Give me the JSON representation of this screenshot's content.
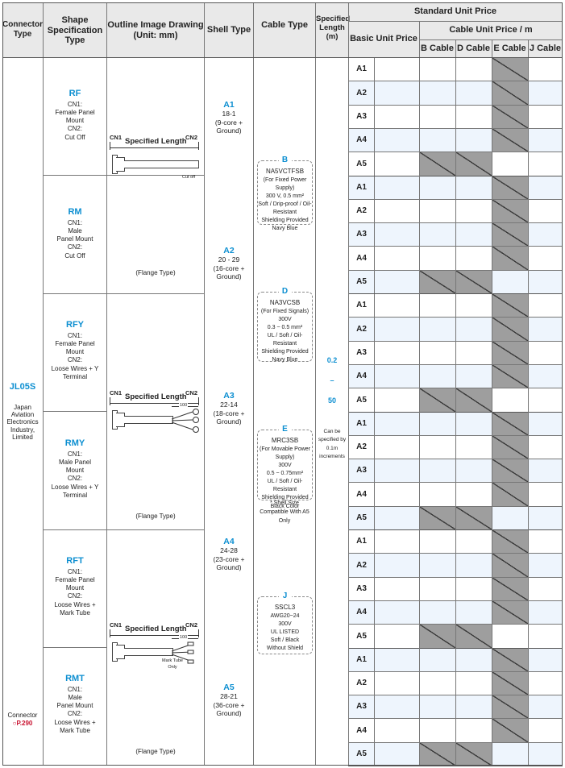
{
  "headers": {
    "connector_type": "Connector Type",
    "shape_spec": "Shape Specification Type",
    "outline": "Outline Image Drawing (Unit: mm)",
    "shell_type": "Shell Type",
    "cable_type": "Cable Type",
    "spec_length": "Specified Length (m)",
    "standard_unit_price": "Standard Unit Price",
    "basic_unit_price": "Basic Unit Price",
    "cable_unit_price": "Cable Unit Price / m",
    "cable_cols": [
      "B Cable",
      "D Cable",
      "E Cable",
      "J Cable"
    ]
  },
  "connector": {
    "name": "JL05S",
    "maker": "Japan Aviation Electronics Industry, Limited",
    "ref_label": "Connector",
    "ref_page": "P.290"
  },
  "shapes": [
    {
      "code": "RF",
      "desc": "CN1:\nFemale Panel\nMount\nCN2:\nCut Off"
    },
    {
      "code": "RM",
      "desc": "CN1:\nMale\nPanel Mount\nCN2:\nCut Off"
    },
    {
      "code": "RFY",
      "desc": "CN1:\nFemale Panel\nMount\nCN2:\nLoose Wires + Y\nTerminal"
    },
    {
      "code": "RMY",
      "desc": "CN1:\nMale Panel\nMount\nCN2:\nLoose Wires + Y\nTerminal"
    },
    {
      "code": "RFT",
      "desc": "CN1:\nFemale Panel\nMount\nCN2:\nLoose Wires +\nMark Tube"
    },
    {
      "code": "RMT",
      "desc": "CN1:\nMale\nPanel Mount\nCN2:\nLoose Wires +\nMark Tube"
    }
  ],
  "drawings": [
    {
      "cn1": "CN1",
      "cn2": "CN2",
      "spec": "Specified Length",
      "note": "Cut off",
      "flange": "(Flange Type)",
      "dim": ""
    },
    {
      "cn1": "CN1",
      "cn2": "CN2",
      "spec": "Specified Length",
      "note": "",
      "flange": "(Flange Type)",
      "dim": "100"
    },
    {
      "cn1": "CN1",
      "cn2": "CN2",
      "spec": "Specified Length",
      "note": "Mark Tube\nOnly",
      "flange": "(Flange Type)",
      "dim": "100"
    }
  ],
  "shells": [
    {
      "code": "A1",
      "spec": "18-1\n(9-core +\nGround)"
    },
    {
      "code": "A2",
      "spec": "20 - 29\n(16-core +\nGround)"
    },
    {
      "code": "A3",
      "spec": "22-14\n(18-core +\nGround)"
    },
    {
      "code": "A4",
      "spec": "24-28\n(23-core +\nGround)"
    },
    {
      "code": "A5",
      "spec": "28-21\n(36-core +\nGround)"
    }
  ],
  "cables": [
    {
      "letter": "B",
      "lines": [
        "NA5VCTFSB",
        "(For Fixed Power Supply)",
        "300 V, 0.5 mm²",
        "Soft / Drip-proof / Oil-Resistant",
        "Shielding Provided",
        "Navy Blue"
      ]
    },
    {
      "letter": "D",
      "lines": [
        "NA3VCSB",
        "(For Fixed Signals)",
        "300V",
        "0.3 ~ 0.5 mm²",
        "UL / Soft / Oil-Resistant",
        "Shielding Provided",
        "Navy Blue"
      ]
    },
    {
      "letter": "E",
      "lines": [
        "MRC3SB",
        "(For Movable Power Supply)",
        "300V",
        "0.5 ~ 0.75mm²",
        "UL / Soft / Oil-Resistant",
        "Shielding Provided",
        "Black Color"
      ]
    },
    {
      "letter": "J",
      "lines": [
        "SSCL3",
        "AWG20~24",
        "300V",
        "UL LISTED",
        "Soft / Black",
        "Without Shield"
      ]
    }
  ],
  "shell_note": "* Shell Size\nCompatible With A5\nOnly",
  "length": {
    "min": "0.2",
    "dash": "–",
    "max": "50",
    "note": "Can be\nspecified by\n0.1m\nincrements"
  },
  "price_rows": [
    "A1",
    "A2",
    "A3",
    "A4",
    "A5",
    "A1",
    "A2",
    "A3",
    "A4",
    "A5",
    "A1",
    "A2",
    "A3",
    "A4",
    "A5",
    "A1",
    "A2",
    "A3",
    "A4",
    "A5",
    "A1",
    "A2",
    "A3",
    "A4",
    "A5",
    "A1",
    "A2",
    "A3",
    "A4",
    "A5"
  ],
  "unavailable": {
    "a1_to_a4": [
      "E Cable"
    ],
    "a5": [
      "B Cable",
      "D Cable"
    ]
  }
}
